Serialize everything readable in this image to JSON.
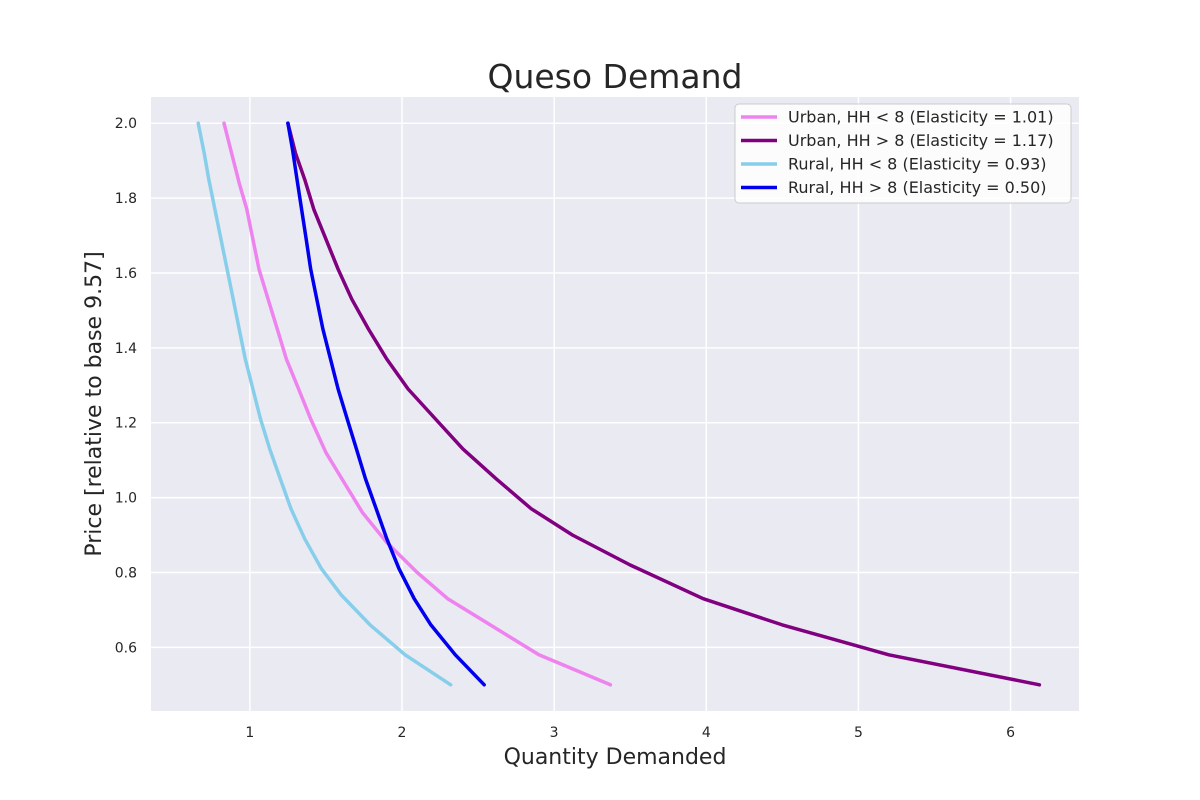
{
  "chart_data": {
    "type": "line",
    "title": "Queso Demand",
    "xlabel": "Quantity Demanded",
    "ylabel": "Price [relative to base 9.57]",
    "xlim": [
      0.35,
      6.45
    ],
    "ylim": [
      0.43,
      2.07
    ],
    "xticks": [
      1,
      2,
      3,
      4,
      5,
      6
    ],
    "yticks": [
      0.6,
      0.8,
      1.0,
      1.2,
      1.4,
      1.6,
      1.8,
      2.0
    ],
    "grid": true,
    "legend_position": "top-right",
    "series": [
      {
        "name": "Urban, HH < 8 (Elasticity = 1.01)",
        "color": "#ee82ee",
        "points": [
          [
            3.37,
            0.5
          ],
          [
            2.9,
            0.58
          ],
          [
            2.58,
            0.66
          ],
          [
            2.3,
            0.73
          ],
          [
            2.1,
            0.8
          ],
          [
            1.9,
            0.88
          ],
          [
            1.74,
            0.96
          ],
          [
            1.62,
            1.04
          ],
          [
            1.5,
            1.12
          ],
          [
            1.4,
            1.21
          ],
          [
            1.32,
            1.29
          ],
          [
            1.24,
            1.37
          ],
          [
            1.18,
            1.45
          ],
          [
            1.12,
            1.53
          ],
          [
            1.06,
            1.61
          ],
          [
            1.02,
            1.69
          ],
          [
            0.98,
            1.77
          ],
          [
            0.93,
            1.84
          ],
          [
            0.88,
            1.92
          ],
          [
            0.83,
            2.0
          ]
        ]
      },
      {
        "name": "Urban, HH > 8 (Elasticity = 1.17)",
        "color": "#800080",
        "points": [
          [
            6.19,
            0.5
          ],
          [
            5.2,
            0.58
          ],
          [
            4.5,
            0.66
          ],
          [
            3.98,
            0.73
          ],
          [
            3.5,
            0.82
          ],
          [
            3.12,
            0.9
          ],
          [
            2.85,
            0.97
          ],
          [
            2.62,
            1.05
          ],
          [
            2.4,
            1.13
          ],
          [
            2.22,
            1.21
          ],
          [
            2.04,
            1.29
          ],
          [
            1.9,
            1.37
          ],
          [
            1.78,
            1.45
          ],
          [
            1.67,
            1.53
          ],
          [
            1.58,
            1.61
          ],
          [
            1.5,
            1.69
          ],
          [
            1.42,
            1.77
          ],
          [
            1.36,
            1.85
          ],
          [
            1.3,
            1.92
          ],
          [
            1.25,
            2.0
          ]
        ]
      },
      {
        "name": "Rural, HH < 8  (Elasticity = 0.93)",
        "color": "#87ceeb",
        "points": [
          [
            2.32,
            0.5
          ],
          [
            2.02,
            0.58
          ],
          [
            1.79,
            0.66
          ],
          [
            1.6,
            0.74
          ],
          [
            1.47,
            0.81
          ],
          [
            1.36,
            0.89
          ],
          [
            1.27,
            0.97
          ],
          [
            1.2,
            1.05
          ],
          [
            1.13,
            1.13
          ],
          [
            1.07,
            1.21
          ],
          [
            1.02,
            1.29
          ],
          [
            0.97,
            1.37
          ],
          [
            0.93,
            1.45
          ],
          [
            0.89,
            1.53
          ],
          [
            0.85,
            1.61
          ],
          [
            0.81,
            1.69
          ],
          [
            0.77,
            1.77
          ],
          [
            0.73,
            1.85
          ],
          [
            0.7,
            1.92
          ],
          [
            0.66,
            2.0
          ]
        ]
      },
      {
        "name": "Rural, HH > 8 (Elasticity = 0.50)",
        "color": "#0000ee",
        "points": [
          [
            2.54,
            0.5
          ],
          [
            2.35,
            0.58
          ],
          [
            2.19,
            0.66
          ],
          [
            2.08,
            0.73
          ],
          [
            1.98,
            0.81
          ],
          [
            1.9,
            0.89
          ],
          [
            1.83,
            0.97
          ],
          [
            1.76,
            1.05
          ],
          [
            1.7,
            1.13
          ],
          [
            1.64,
            1.21
          ],
          [
            1.58,
            1.29
          ],
          [
            1.53,
            1.37
          ],
          [
            1.48,
            1.45
          ],
          [
            1.44,
            1.53
          ],
          [
            1.4,
            1.61
          ],
          [
            1.37,
            1.69
          ],
          [
            1.34,
            1.77
          ],
          [
            1.31,
            1.85
          ],
          [
            1.28,
            1.93
          ],
          [
            1.25,
            2.0
          ]
        ]
      }
    ]
  }
}
